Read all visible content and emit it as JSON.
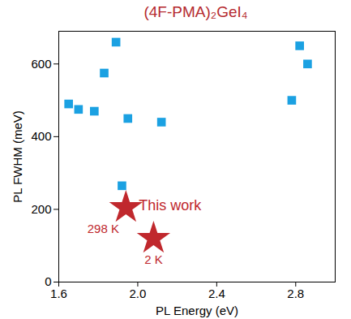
{
  "chart_data": {
    "type": "scatter",
    "title": "(4F-PMA)₂GeI₄",
    "x_label": "PL Energy (eV)",
    "y_label": "PL FWHM (meV)",
    "xlim": [
      1.6,
      3.0
    ],
    "xticks": [
      {
        "value": 1.6,
        "label": "1.6"
      },
      {
        "value": 2.0,
        "label": "2.0"
      },
      {
        "value": 2.4,
        "label": "2.4"
      },
      {
        "value": 2.8,
        "label": "2.8"
      }
    ],
    "ylim": [
      0,
      690
    ],
    "yticks": [
      0,
      200,
      400,
      600
    ],
    "grid": false,
    "series": [
      {
        "color": "#1ba1e2",
        "marker": "square",
        "x": [
          1.65,
          1.7,
          1.78,
          1.83,
          1.89,
          1.95,
          2.12,
          2.78,
          2.82,
          2.86,
          1.92
        ],
        "values": [
          490,
          475,
          470,
          575,
          660,
          450,
          440,
          500,
          650,
          600,
          265
        ]
      },
      {
        "color": "#c0282d",
        "marker": "star",
        "x": [
          1.94,
          2.08
        ],
        "values": [
          205,
          120
        ],
        "point_labels": [
          "298 K",
          "2 K"
        ]
      }
    ],
    "annotations": [
      {
        "text": "This work"
      }
    ]
  }
}
